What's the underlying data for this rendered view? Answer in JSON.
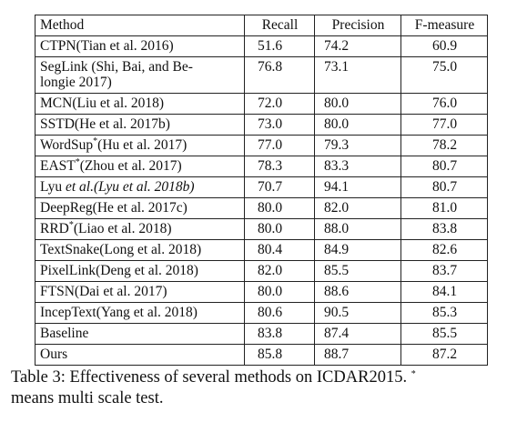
{
  "table": {
    "headers": {
      "method": "Method",
      "recall": "Recall",
      "precision": "Precision",
      "fmeasure": "F-measure"
    },
    "rows": [
      {
        "method": "CTPN(Tian et al. 2016)",
        "recall": "51.6",
        "precision": "74.2",
        "fmeasure": "60.9"
      },
      {
        "method": "SegLink (Shi, Bai, and Belongie 2017)",
        "method_line1": "SegLink (Shi, Bai, and Be-",
        "method_line2": "longie 2017)",
        "recall": "76.8",
        "precision": "73.1",
        "fmeasure": "75.0"
      },
      {
        "method": "MCN(Liu et al. 2018)",
        "recall": "72.0",
        "precision": "80.0",
        "fmeasure": "76.0"
      },
      {
        "method": "SSTD(He et al. 2017b)",
        "recall": "73.0",
        "precision": "80.0",
        "fmeasure": "77.0"
      },
      {
        "method_name": "WordSup",
        "star": "*",
        "method_ref": "(Hu et al. 2017)",
        "recall": "77.0",
        "precision": "79.3",
        "fmeasure": "78.2"
      },
      {
        "method_name": "EAST",
        "star": "*",
        "method_ref": "(Zhou et al. 2017)",
        "recall": "78.3",
        "precision": "83.3",
        "fmeasure": "80.7"
      },
      {
        "method_name": "Lyu ",
        "method_ref_italic": "et al.(Lyu et al. 2018b)",
        "recall": "70.7",
        "precision": "94.1",
        "fmeasure": "80.7"
      },
      {
        "method": "DeepReg(He et al. 2017c)",
        "recall": "80.0",
        "precision": "82.0",
        "fmeasure": "81.0"
      },
      {
        "method_name": "RRD",
        "star": "*",
        "method_ref": "(Liao et al. 2018)",
        "recall": "80.0",
        "precision": "88.0",
        "fmeasure": "83.8"
      },
      {
        "method": "TextSnake(Long et al. 2018)",
        "recall": "80.4",
        "precision": "84.9",
        "fmeasure": "82.6"
      },
      {
        "method": "PixelLink(Deng et al. 2018)",
        "recall": "82.0",
        "precision": "85.5",
        "fmeasure": "83.7"
      },
      {
        "method": "FTSN(Dai et al. 2017)",
        "recall": "80.0",
        "precision": "88.6",
        "fmeasure": "84.1"
      },
      {
        "method": "IncepText(Yang et al. 2018)",
        "recall": "80.6",
        "precision": "90.5",
        "fmeasure": "85.3"
      },
      {
        "method": "Baseline",
        "recall": "83.8",
        "precision": "87.4",
        "fmeasure": "85.5"
      },
      {
        "method": "Ours",
        "recall": "85.8",
        "precision": "88.7",
        "fmeasure": "87.2"
      }
    ]
  },
  "caption": {
    "text": "Table 3: Effectiveness of several methods on ICDAR2015.",
    "star": "*",
    "text2": "means multi scale test."
  }
}
